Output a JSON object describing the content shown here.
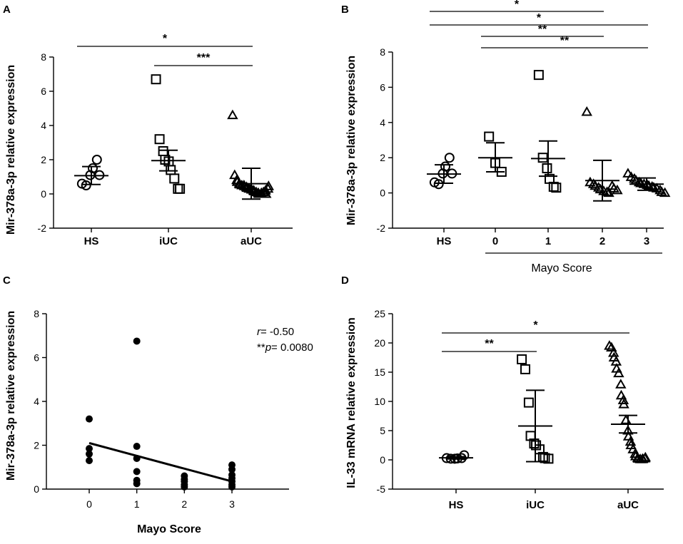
{
  "chart_data": [
    {
      "panel": "A",
      "type": "scatter",
      "ylabel": "Mir-378a-3p relative expression",
      "ylim": [
        -2,
        8
      ],
      "yticks": [
        "-2",
        "0",
        "2",
        "4",
        "6",
        "8"
      ],
      "categories": [
        "HS",
        "iUC",
        "aUC"
      ],
      "markers": [
        "circle",
        "square",
        "triangle"
      ],
      "groups": [
        {
          "name": "HS",
          "points": [
            0.6,
            0.5,
            1.1,
            1.5,
            2.0,
            1.1
          ],
          "mean": 1.07,
          "sd_low": 0.55,
          "sd_high": 1.6
        },
        {
          "name": "iUC",
          "points": [
            6.7,
            3.2,
            2.5,
            2.0,
            1.9,
            1.4,
            0.9,
            0.3,
            0.3
          ],
          "mean": 1.95,
          "sd_low": 1.35,
          "sd_high": 2.55
        },
        {
          "name": "aUC",
          "points": [
            4.6,
            1.1,
            0.8,
            0.7,
            0.6,
            0.55,
            0.5,
            0.5,
            0.45,
            0.4,
            0.35,
            0.3,
            0.3,
            0.25,
            0.2,
            0.15,
            0.1,
            0.05,
            0.0,
            0.0,
            0.05,
            0.1,
            0.2,
            0.0,
            0.3,
            0.45
          ],
          "mean": 0.6,
          "sd_low": -0.3,
          "sd_high": 1.5
        }
      ],
      "significance": [
        {
          "from": "HS",
          "to": "aUC",
          "label": "*"
        },
        {
          "from": "iUC",
          "to": "aUC",
          "label": "***"
        }
      ]
    },
    {
      "panel": "B",
      "type": "scatter",
      "ylabel": "Mir-378a-3p relative expression",
      "ylim": [
        -2,
        8
      ],
      "yticks": [
        "-2",
        "0",
        "2",
        "4",
        "6",
        "8"
      ],
      "categories": [
        "HS",
        "0",
        "1",
        "2",
        "3"
      ],
      "group_label": "Mayo Score",
      "markers": [
        "circle",
        "square",
        "square",
        "triangle",
        "triangle"
      ],
      "groups": [
        {
          "name": "HS",
          "points": [
            0.6,
            0.5,
            1.1,
            1.5,
            2.0,
            1.1
          ],
          "mean": 1.07,
          "sd_low": 0.55,
          "sd_high": 1.6
        },
        {
          "name": "0",
          "points": [
            3.2,
            1.7,
            1.2
          ],
          "mean": 2.0,
          "sd_low": 1.2,
          "sd_high": 2.85
        },
        {
          "name": "1",
          "points": [
            6.7,
            2.0,
            1.4,
            0.8,
            0.35,
            0.3
          ],
          "mean": 1.95,
          "sd_low": 0.95,
          "sd_high": 2.95
        },
        {
          "name": "2",
          "points": [
            4.6,
            0.6,
            0.5,
            0.4,
            0.3,
            0.2,
            0.1,
            0.05,
            0.0,
            0.4,
            0.25,
            0.15
          ],
          "mean": 0.7,
          "sd_low": -0.45,
          "sd_high": 1.85
        },
        {
          "name": "3",
          "points": [
            1.1,
            0.9,
            0.8,
            0.7,
            0.6,
            0.55,
            0.5,
            0.45,
            0.4,
            0.35,
            0.3,
            0.25,
            0.15,
            0.05,
            0.0
          ],
          "mean": 0.5,
          "sd_low": 0.15,
          "sd_high": 0.85
        }
      ],
      "significance": [
        {
          "from": "HS",
          "to": "2",
          "label": "*"
        },
        {
          "from": "HS",
          "to": "3",
          "label": "*"
        },
        {
          "from": "0",
          "to": "2",
          "label": "**"
        },
        {
          "from": "0",
          "to": "3",
          "label": "**"
        }
      ]
    },
    {
      "panel": "C",
      "type": "scatter",
      "ylabel": "Mir-378a-3p relative expression",
      "xlabel": "Mayo Score",
      "ylim": [
        0,
        8
      ],
      "xlim": [
        -0.9,
        4.2
      ],
      "yticks": [
        "0",
        "2",
        "4",
        "6",
        "8"
      ],
      "xticks": [
        "0",
        "1",
        "2",
        "3"
      ],
      "points": [
        {
          "x": 0,
          "y": 3.2
        },
        {
          "x": 0,
          "y": 1.85
        },
        {
          "x": 0,
          "y": 1.6
        },
        {
          "x": 0,
          "y": 1.3
        },
        {
          "x": 1,
          "y": 6.75
        },
        {
          "x": 1,
          "y": 1.95
        },
        {
          "x": 1,
          "y": 1.4
        },
        {
          "x": 1,
          "y": 0.8
        },
        {
          "x": 1,
          "y": 0.4
        },
        {
          "x": 1,
          "y": 0.25
        },
        {
          "x": 2,
          "y": 0.6
        },
        {
          "x": 2,
          "y": 0.45
        },
        {
          "x": 2,
          "y": 0.35
        },
        {
          "x": 2,
          "y": 0.2
        },
        {
          "x": 2,
          "y": 0.1
        },
        {
          "x": 3,
          "y": 1.1
        },
        {
          "x": 3,
          "y": 0.9
        },
        {
          "x": 3,
          "y": 0.65
        },
        {
          "x": 3,
          "y": 0.5
        },
        {
          "x": 3,
          "y": 0.35
        },
        {
          "x": 3,
          "y": 0.2
        },
        {
          "x": 3,
          "y": 0.1
        }
      ],
      "regression": {
        "x": [
          0,
          3
        ],
        "y": [
          2.1,
          0.35
        ]
      },
      "annotation": {
        "r_label": "r",
        "r_value": "= -0.50",
        "p_prefix": "**",
        "p_label": "p",
        "p_value": "= 0.0080"
      }
    },
    {
      "panel": "D",
      "type": "scatter",
      "ylabel": "IL-33 mRNA relative expression",
      "ylim": [
        -5,
        25
      ],
      "yticks": [
        "-5",
        "0",
        "5",
        "10",
        "15",
        "20",
        "25"
      ],
      "categories": [
        "HS",
        "iUC",
        "aUC"
      ],
      "markers": [
        "circle",
        "square",
        "triangle"
      ],
      "groups": [
        {
          "name": "HS",
          "points": [
            0.3,
            0.2,
            0.2,
            0.25,
            0.3,
            0.8
          ],
          "mean": 0.35,
          "sd_low": 0.15,
          "sd_high": 0.55
        },
        {
          "name": "iUC",
          "points": [
            17.2,
            15.5,
            9.8,
            4.1,
            2.8,
            2.5,
            1.8,
            0.5,
            0.3,
            0.2
          ],
          "mean": 5.8,
          "sd_low": -0.3,
          "sd_high": 11.9
        },
        {
          "name": "aUC",
          "points": [
            19.5,
            19.2,
            18.3,
            17.5,
            16.8,
            15.6,
            14.8,
            12.9,
            11.0,
            10.2,
            9.5,
            6.8,
            5.0,
            4.0,
            3.1,
            2.5,
            1.8,
            1.0,
            0.6,
            0.3,
            0.2,
            0.1,
            0.1,
            0.15,
            0.25,
            0.4
          ],
          "mean": 6.1,
          "sd_low": 4.6,
          "sd_high": 7.6
        }
      ],
      "significance": [
        {
          "from": "HS",
          "to": "iUC",
          "label": "**"
        },
        {
          "from": "HS",
          "to": "aUC",
          "label": "*"
        }
      ]
    }
  ]
}
